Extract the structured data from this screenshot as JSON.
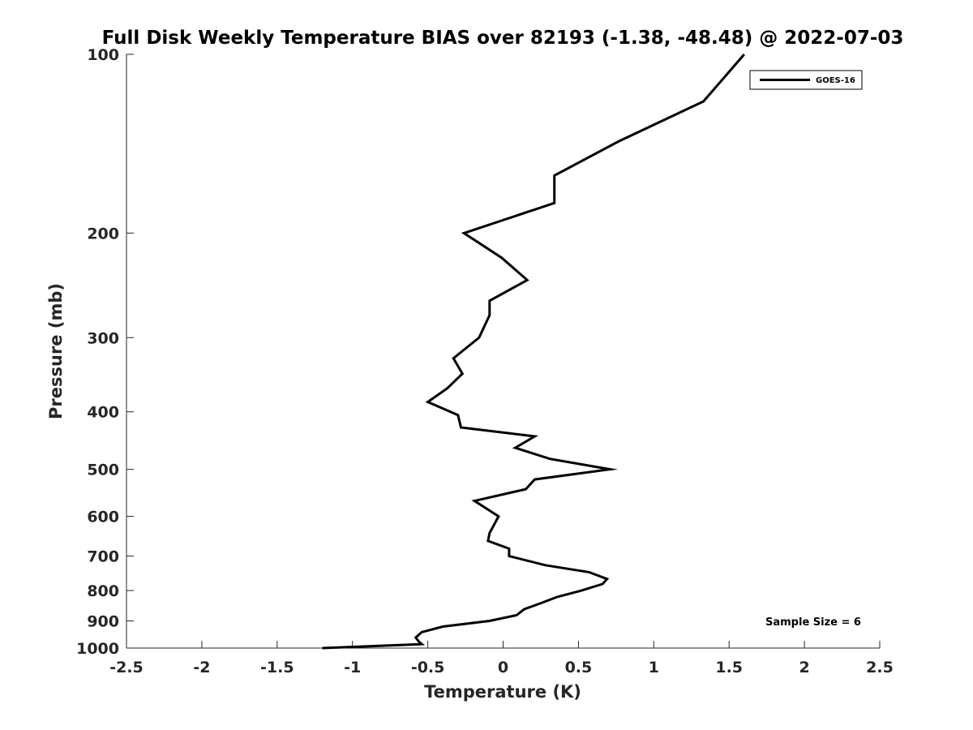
{
  "chart_data": {
    "type": "line",
    "title": "Full Disk Weekly Temperature BIAS over 82193 (-1.38, -48.48) @ 2022-07-03",
    "xlabel": "Temperature (K)",
    "ylabel": "Pressure (mb)",
    "xlim": [
      -2.5,
      2.5
    ],
    "ylim": [
      1000,
      100
    ],
    "yscale": "log",
    "y_reversed": true,
    "grid": false,
    "x_ticks": [
      -2.5,
      -2,
      -1.5,
      -1,
      -0.5,
      0,
      0.5,
      1,
      1.5,
      2,
      2.5
    ],
    "x_tick_labels": [
      "-2.5",
      "-2",
      "-1.5",
      "-1",
      "-0.5",
      "0",
      "0.5",
      "1",
      "1.5",
      "2",
      "2.5"
    ],
    "y_ticks": [
      100,
      200,
      300,
      400,
      500,
      600,
      700,
      800,
      900,
      1000
    ],
    "y_tick_labels": [
      "100",
      "200",
      "300",
      "400",
      "500",
      "600",
      "700",
      "800",
      "900",
      "1000"
    ],
    "legend_position": "top-right",
    "series": [
      {
        "name": "GOES-16",
        "color": "#000000",
        "points": [
          {
            "x": 1.6,
            "y": 100
          },
          {
            "x": 1.33,
            "y": 120
          },
          {
            "x": 0.77,
            "y": 140
          },
          {
            "x": 0.34,
            "y": 160
          },
          {
            "x": 0.34,
            "y": 178
          },
          {
            "x": -0.26,
            "y": 200
          },
          {
            "x": -0.01,
            "y": 220
          },
          {
            "x": 0.16,
            "y": 240
          },
          {
            "x": -0.09,
            "y": 260
          },
          {
            "x": -0.09,
            "y": 275
          },
          {
            "x": -0.16,
            "y": 300
          },
          {
            "x": -0.33,
            "y": 325
          },
          {
            "x": -0.27,
            "y": 345
          },
          {
            "x": -0.37,
            "y": 365
          },
          {
            "x": -0.5,
            "y": 385
          },
          {
            "x": -0.3,
            "y": 405
          },
          {
            "x": -0.28,
            "y": 425
          },
          {
            "x": 0.21,
            "y": 440
          },
          {
            "x": 0.08,
            "y": 460
          },
          {
            "x": 0.31,
            "y": 480
          },
          {
            "x": 0.71,
            "y": 500
          },
          {
            "x": 0.21,
            "y": 520
          },
          {
            "x": 0.15,
            "y": 540
          },
          {
            "x": -0.19,
            "y": 565
          },
          {
            "x": -0.03,
            "y": 600
          },
          {
            "x": -0.09,
            "y": 640
          },
          {
            "x": -0.1,
            "y": 660
          },
          {
            "x": 0.04,
            "y": 680
          },
          {
            "x": 0.04,
            "y": 700
          },
          {
            "x": 0.28,
            "y": 725
          },
          {
            "x": 0.57,
            "y": 745
          },
          {
            "x": 0.69,
            "y": 765
          },
          {
            "x": 0.66,
            "y": 780
          },
          {
            "x": 0.52,
            "y": 800
          },
          {
            "x": 0.36,
            "y": 820
          },
          {
            "x": 0.25,
            "y": 840
          },
          {
            "x": 0.14,
            "y": 860
          },
          {
            "x": 0.09,
            "y": 880
          },
          {
            "x": -0.09,
            "y": 900
          },
          {
            "x": -0.4,
            "y": 920
          },
          {
            "x": -0.54,
            "y": 940
          },
          {
            "x": -0.58,
            "y": 960
          },
          {
            "x": -0.56,
            "y": 975
          },
          {
            "x": -0.54,
            "y": 985
          },
          {
            "x": -1.2,
            "y": 1000
          }
        ]
      }
    ],
    "annotations": [
      "Sample Size = 6"
    ]
  }
}
